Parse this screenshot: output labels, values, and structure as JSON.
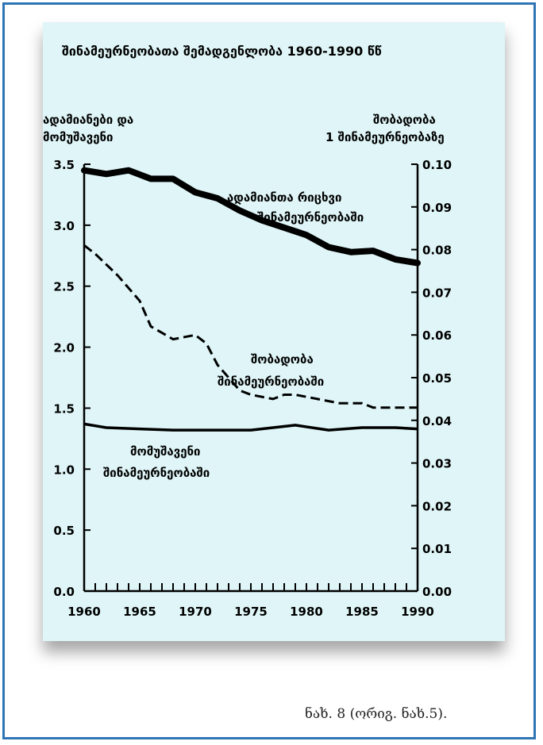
{
  "chart_data": {
    "type": "line",
    "title": "შინამეურნეობათა შემადგენლობა 1960-1990 წწ",
    "y_left_label": [
      "ადამიანები და",
      "მომუშავენი"
    ],
    "y_right_label": [
      "შობადობა",
      "1 შინამეურნეობაზე"
    ],
    "x_ticks": [
      1960,
      1965,
      1970,
      1975,
      1980,
      1985,
      1990
    ],
    "xlim": [
      1960,
      1990
    ],
    "ylim_left": [
      0,
      3.5
    ],
    "ylim_right": [
      0,
      0.1
    ],
    "y_left_ticks": [
      "0.0",
      "0.5",
      "1.0",
      "1.5",
      "2.0",
      "2.5",
      "3.0",
      "3.5"
    ],
    "y_right_ticks": [
      "0.00",
      "0.01",
      "0.02",
      "0.03",
      "0.04",
      "0.05",
      "0.06",
      "0.07",
      "0.08",
      "0.09",
      "0.10"
    ],
    "series": [
      {
        "name": "ადამიანთა რიცხვი შინამეურნეობაში",
        "label_lines": [
          "ადამიანთა რიცხვი",
          "შინამეურნეობაში"
        ],
        "axis": "left",
        "style": "thick",
        "x": [
          1960,
          1962,
          1964,
          1966,
          1968,
          1970,
          1972,
          1974,
          1976,
          1978,
          1980,
          1982,
          1984,
          1986,
          1988,
          1990
        ],
        "y": [
          3.45,
          3.42,
          3.45,
          3.38,
          3.38,
          3.27,
          3.22,
          3.12,
          3.04,
          2.98,
          2.92,
          2.82,
          2.78,
          2.79,
          2.72,
          2.69
        ]
      },
      {
        "name": "შობადობა შინამეურნეობაში",
        "label_lines": [
          "შობადობა",
          "შინამეურნეობაში"
        ],
        "axis": "right",
        "style": "dashed",
        "x": [
          1960,
          1961,
          1963,
          1965,
          1966,
          1968,
          1970,
          1971,
          1972,
          1974,
          1975,
          1977,
          1978,
          1979,
          1981,
          1983,
          1985,
          1986,
          1988,
          1990
        ],
        "y": [
          0.081,
          0.079,
          0.074,
          0.068,
          0.062,
          0.059,
          0.06,
          0.058,
          0.053,
          0.047,
          0.046,
          0.045,
          0.046,
          0.046,
          0.045,
          0.044,
          0.044,
          0.043,
          0.043,
          0.043
        ]
      },
      {
        "name": "მომუშავენი შინამეურნეობაში",
        "label_lines": [
          "მომუშავენი",
          "შინამეურნეობაში"
        ],
        "axis": "left",
        "style": "solid",
        "x": [
          1960,
          1962,
          1965,
          1968,
          1972,
          1975,
          1977,
          1979,
          1982,
          1985,
          1988,
          1990
        ],
        "y": [
          1.37,
          1.34,
          1.33,
          1.32,
          1.32,
          1.32,
          1.34,
          1.36,
          1.32,
          1.34,
          1.34,
          1.33
        ]
      }
    ]
  },
  "caption": "ნახ. 8 (ორიგ. ნახ.5)."
}
